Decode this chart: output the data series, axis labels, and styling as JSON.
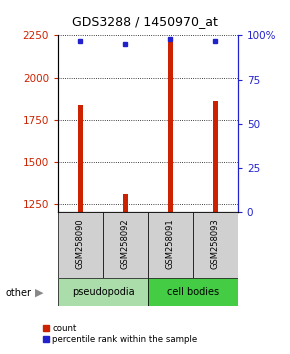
{
  "title": "GDS3288 / 1450970_at",
  "samples": [
    "GSM258090",
    "GSM258092",
    "GSM258091",
    "GSM258093"
  ],
  "counts": [
    1840,
    1310,
    2210,
    1860
  ],
  "percentiles": [
    97,
    95,
    98,
    97
  ],
  "ylim_left": [
    1200,
    2250
  ],
  "ylim_right": [
    0,
    100
  ],
  "yticks_left": [
    1250,
    1500,
    1750,
    2000,
    2250
  ],
  "yticks_right": [
    0,
    25,
    50,
    75,
    100
  ],
  "ytick_labels_right": [
    "0",
    "25",
    "50",
    "75",
    "100%"
  ],
  "bar_color": "#cc2200",
  "dot_color": "#2222cc",
  "bar_width": 0.12,
  "groups": [
    {
      "label": "pseudopodia",
      "color": "#aaddaa"
    },
    {
      "label": "cell bodies",
      "color": "#44cc44"
    }
  ],
  "other_label": "other",
  "legend_count_label": "count",
  "legend_pct_label": "percentile rank within the sample",
  "tick_color_left": "#cc2200",
  "tick_color_right": "#2222cc"
}
